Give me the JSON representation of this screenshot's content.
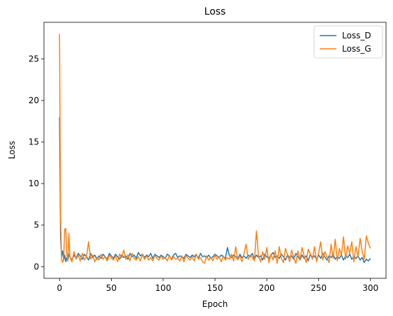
{
  "chart_data": {
    "type": "line",
    "title": "Loss",
    "xlabel": "Epoch",
    "ylabel": "Loss",
    "xlim": [
      -15,
      315
    ],
    "ylim": [
      -1.4,
      29.4
    ],
    "xticks": [
      0,
      50,
      100,
      150,
      200,
      250,
      300
    ],
    "yticks": [
      0,
      5,
      10,
      15,
      20,
      25
    ],
    "grid": false,
    "legend_position": "top-right",
    "series": [
      {
        "name": "Loss_D",
        "color": "#1f77b4",
        "x": [
          0,
          1,
          2,
          3,
          4,
          5,
          6,
          7,
          8,
          9,
          10,
          12,
          14,
          16,
          18,
          20,
          22,
          24,
          26,
          28,
          30,
          32,
          34,
          36,
          38,
          40,
          42,
          44,
          46,
          48,
          50,
          52,
          54,
          56,
          58,
          60,
          62,
          64,
          66,
          68,
          70,
          72,
          74,
          76,
          78,
          80,
          82,
          84,
          86,
          88,
          90,
          92,
          94,
          96,
          98,
          100,
          102,
          104,
          106,
          108,
          110,
          112,
          114,
          116,
          118,
          120,
          122,
          124,
          126,
          128,
          130,
          132,
          134,
          136,
          138,
          140,
          142,
          144,
          146,
          148,
          150,
          152,
          154,
          156,
          158,
          160,
          162,
          164,
          166,
          168,
          170,
          172,
          174,
          176,
          178,
          180,
          182,
          184,
          186,
          188,
          190,
          192,
          194,
          196,
          198,
          200,
          202,
          204,
          206,
          208,
          210,
          212,
          214,
          216,
          218,
          220,
          222,
          224,
          226,
          228,
          230,
          232,
          234,
          236,
          238,
          240,
          242,
          244,
          246,
          248,
          250,
          252,
          254,
          256,
          258,
          260,
          262,
          264,
          266,
          268,
          270,
          272,
          274,
          276,
          278,
          280,
          282,
          284,
          286,
          288,
          290,
          292,
          294,
          296,
          298,
          300
        ],
        "values": [
          18,
          3.5,
          1.2,
          1.9,
          0.8,
          1.4,
          0.6,
          1.1,
          0.7,
          1.5,
          1.2,
          0.8,
          1.4,
          1.0,
          1.6,
          1.3,
          0.9,
          1.5,
          1.2,
          0.8,
          1.6,
          1.1,
          1.4,
          0.9,
          1.3,
          1.0,
          1.5,
          1.2,
          0.9,
          1.6,
          1.3,
          1.0,
          1.5,
          1.2,
          0.9,
          1.4,
          1.1,
          1.3,
          0.9,
          1.6,
          1.2,
          1.4,
          1.0,
          1.7,
          1.3,
          1.5,
          1.1,
          1.4,
          1.2,
          1.6,
          1.0,
          1.5,
          1.3,
          1.1,
          1.4,
          1.2,
          1.0,
          1.5,
          1.3,
          0.9,
          1.4,
          1.6,
          1.1,
          1.3,
          1.2,
          1.0,
          1.5,
          1.3,
          1.1,
          1.4,
          1.2,
          1.5,
          1.0,
          1.6,
          1.2,
          1.3,
          1.1,
          1.4,
          1.0,
          1.2,
          1.5,
          1.3,
          1.1,
          1.4,
          1.2,
          1.0,
          2.3,
          1.3,
          1.1,
          1.4,
          1.2,
          0.9,
          1.5,
          1.1,
          1.3,
          1.0,
          1.4,
          1.2,
          1.6,
          0.9,
          1.4,
          1.1,
          1.3,
          0.8,
          1.5,
          1.2,
          1.0,
          1.4,
          1.7,
          1.1,
          1.3,
          1.0,
          1.5,
          1.2,
          0.8,
          1.4,
          1.1,
          1.3,
          0.9,
          1.6,
          1.2,
          0.8,
          1.4,
          1.0,
          1.3,
          0.7,
          1.5,
          1.1,
          1.3,
          0.9,
          1.4,
          1.0,
          1.6,
          1.2,
          0.8,
          1.3,
          1.1,
          1.5,
          0.9,
          1.2,
          1.0,
          1.4,
          0.8,
          1.3,
          1.1,
          1.5,
          0.9,
          1.2,
          1.0,
          1.3,
          0.8,
          1.1,
          0.5,
          0.9,
          0.7,
          1.0
        ]
      },
      {
        "name": "Loss_G",
        "color": "#ff7f0e",
        "x": [
          0,
          1,
          2,
          3,
          4,
          5,
          6,
          7,
          8,
          9,
          10,
          12,
          14,
          16,
          18,
          20,
          22,
          24,
          26,
          28,
          30,
          32,
          34,
          36,
          38,
          40,
          42,
          44,
          46,
          48,
          50,
          52,
          54,
          56,
          58,
          60,
          62,
          64,
          66,
          68,
          70,
          72,
          74,
          76,
          78,
          80,
          82,
          84,
          86,
          88,
          90,
          92,
          94,
          96,
          98,
          100,
          102,
          104,
          106,
          108,
          110,
          112,
          114,
          116,
          118,
          120,
          122,
          124,
          126,
          128,
          130,
          132,
          134,
          136,
          138,
          140,
          142,
          144,
          146,
          148,
          150,
          152,
          154,
          156,
          158,
          160,
          162,
          164,
          166,
          168,
          170,
          172,
          174,
          176,
          178,
          180,
          182,
          184,
          186,
          188,
          190,
          192,
          194,
          196,
          198,
          200,
          202,
          204,
          206,
          208,
          210,
          212,
          214,
          216,
          218,
          220,
          222,
          224,
          226,
          228,
          230,
          232,
          234,
          236,
          238,
          240,
          242,
          244,
          246,
          248,
          250,
          252,
          254,
          256,
          258,
          260,
          262,
          264,
          266,
          268,
          270,
          272,
          274,
          276,
          278,
          280,
          282,
          284,
          286,
          288,
          290,
          292,
          294,
          296,
          298,
          300
        ],
        "values": [
          28,
          6,
          0.8,
          0.5,
          1.0,
          4.5,
          4.6,
          1.5,
          0.7,
          4.0,
          1.2,
          0.6,
          1.8,
          0.9,
          1.4,
          0.7,
          1.6,
          0.8,
          1.2,
          3.0,
          0.9,
          1.4,
          0.6,
          1.1,
          0.8,
          1.5,
          0.9,
          1.2,
          0.7,
          1.4,
          1.0,
          0.8,
          1.3,
          0.6,
          1.5,
          1.1,
          2.0,
          0.9,
          1.4,
          0.7,
          1.6,
          1.0,
          0.8,
          1.2,
          0.7,
          1.5,
          0.9,
          1.3,
          0.8,
          1.1,
          0.7,
          1.4,
          1.0,
          0.8,
          1.3,
          0.9,
          1.1,
          0.7,
          1.4,
          0.8,
          1.2,
          0.9,
          1.0,
          0.7,
          1.3,
          0.6,
          1.4,
          1.0,
          0.8,
          1.2,
          0.7,
          1.5,
          0.9,
          1.1,
          0.6,
          0.4,
          1.3,
          0.8,
          1.1,
          0.7,
          1.4,
          0.9,
          1.2,
          0.6,
          1.3,
          0.8,
          1.1,
          0.9,
          1.5,
          0.7,
          2.4,
          0.8,
          1.3,
          0.6,
          1.6,
          2.7,
          0.9,
          1.4,
          1.1,
          0.7,
          4.3,
          1.2,
          0.6,
          1.8,
          0.9,
          2.3,
          0.5,
          1.5,
          0.8,
          1.9,
          0.4,
          2.4,
          1.0,
          0.5,
          2.2,
          1.4,
          0.6,
          2.0,
          1.1,
          0.4,
          1.9,
          0.8,
          2.3,
          1.3,
          0.5,
          2.1,
          1.5,
          0.9,
          2.4,
          0.6,
          1.7,
          3.0,
          0.8,
          1.8,
          1.2,
          0.5,
          2.7,
          1.0,
          3.3,
          0.7,
          2.2,
          1.4,
          3.6,
          0.9,
          2.5,
          1.6,
          3.0,
          0.6,
          2.4,
          1.2,
          3.4,
          1.8,
          0.9,
          3.7,
          2.8,
          2.2
        ]
      }
    ]
  }
}
